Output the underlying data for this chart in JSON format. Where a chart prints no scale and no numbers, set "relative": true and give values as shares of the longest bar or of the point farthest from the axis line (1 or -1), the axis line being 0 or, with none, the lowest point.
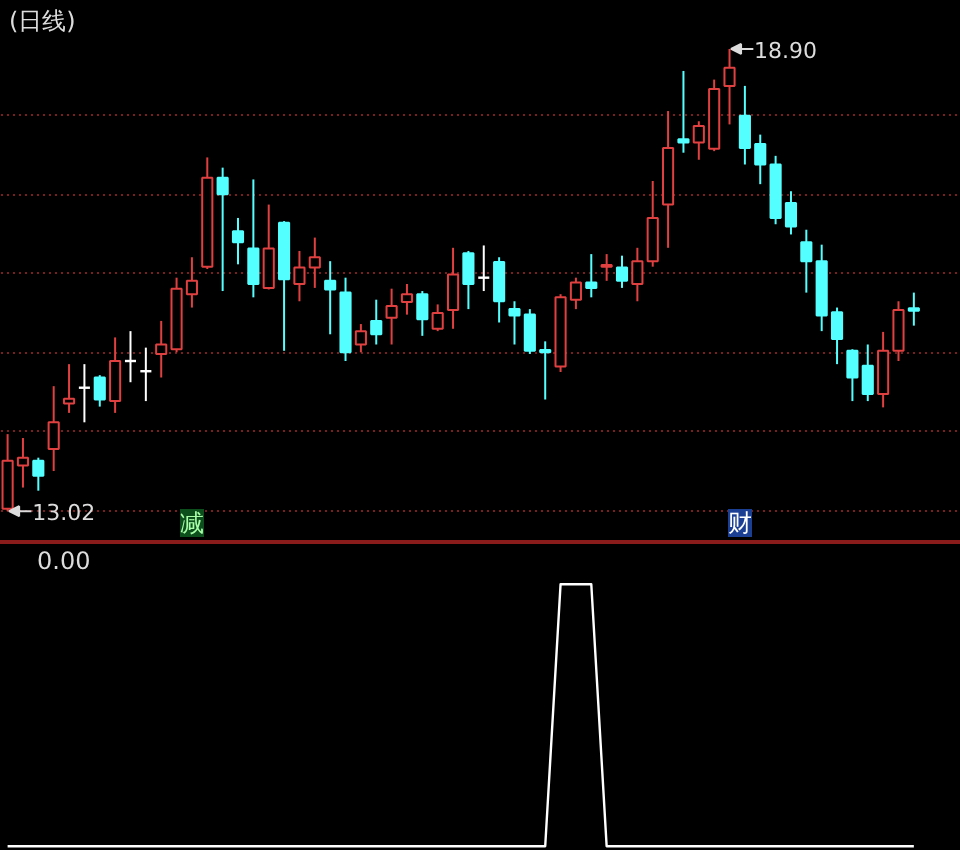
{
  "chart_data": [
    {
      "type": "candlestick",
      "title": "(日线)",
      "categories": [
        null,
        null,
        null,
        null,
        null,
        null,
        null,
        null,
        null,
        null,
        null,
        null,
        null,
        null,
        null,
        null,
        null,
        null,
        null,
        null,
        null,
        null,
        null,
        null,
        null,
        null,
        null,
        null,
        null,
        null,
        null,
        null,
        null,
        null,
        null,
        null,
        null,
        null,
        null,
        null,
        null,
        null,
        null,
        null,
        null,
        null,
        null,
        null,
        null,
        null,
        null,
        null,
        null,
        null,
        null,
        null,
        null,
        null,
        null,
        null
      ],
      "ohlc": [
        [
          13.05,
          14.0,
          13.02,
          13.66
        ],
        [
          13.6,
          13.95,
          13.32,
          13.7
        ],
        [
          13.66,
          13.7,
          13.28,
          13.47
        ],
        [
          13.81,
          14.61,
          13.53,
          14.15
        ],
        [
          14.39,
          14.89,
          14.27,
          14.45
        ],
        [
          14.59,
          14.89,
          14.15,
          14.59
        ],
        [
          14.72,
          14.75,
          14.35,
          14.44
        ],
        [
          14.42,
          15.23,
          14.27,
          14.93
        ],
        [
          14.93,
          15.31,
          14.66,
          14.93
        ],
        [
          14.8,
          15.1,
          14.42,
          14.8
        ],
        [
          15.02,
          15.44,
          14.72,
          15.14
        ],
        [
          15.08,
          15.99,
          15.04,
          15.85
        ],
        [
          15.78,
          16.25,
          15.61,
          15.95
        ],
        [
          16.13,
          17.52,
          16.1,
          17.26
        ],
        [
          17.26,
          17.39,
          15.82,
          17.05
        ],
        [
          16.58,
          16.75,
          16.16,
          16.44
        ],
        [
          16.36,
          17.24,
          15.74,
          15.91
        ],
        [
          15.86,
          16.92,
          15.84,
          16.36
        ],
        [
          16.69,
          16.71,
          15.06,
          15.97
        ],
        [
          15.91,
          16.33,
          15.69,
          16.12
        ],
        [
          16.12,
          16.5,
          15.86,
          16.25
        ],
        [
          15.95,
          16.2,
          15.27,
          15.84
        ],
        [
          15.8,
          15.99,
          14.93,
          15.04
        ],
        [
          15.14,
          15.4,
          15.04,
          15.31
        ],
        [
          15.44,
          15.71,
          15.14,
          15.27
        ],
        [
          15.48,
          15.85,
          15.14,
          15.63
        ],
        [
          15.68,
          15.91,
          15.52,
          15.78
        ],
        [
          15.78,
          15.82,
          15.25,
          15.46
        ],
        [
          15.34,
          15.65,
          15.31,
          15.54
        ],
        [
          15.58,
          16.37,
          15.34,
          16.03
        ],
        [
          16.3,
          16.33,
          15.59,
          15.91
        ],
        [
          15.99,
          16.4,
          15.82,
          15.99
        ],
        [
          16.19,
          16.25,
          15.42,
          15.69
        ],
        [
          15.59,
          15.69,
          15.14,
          15.51
        ],
        [
          15.52,
          15.59,
          15.02,
          15.06
        ],
        [
          15.07,
          15.18,
          14.44,
          15.04
        ],
        [
          14.86,
          15.78,
          14.79,
          15.74
        ],
        [
          15.71,
          15.99,
          15.59,
          15.93
        ],
        [
          15.93,
          16.29,
          15.74,
          15.86
        ],
        [
          16.13,
          16.29,
          15.95,
          16.15
        ],
        [
          16.12,
          16.27,
          15.86,
          15.95
        ],
        [
          15.91,
          16.37,
          15.69,
          16.2
        ],
        [
          16.2,
          17.22,
          16.13,
          16.75
        ],
        [
          16.92,
          18.11,
          16.37,
          17.64
        ],
        [
          17.75,
          18.62,
          17.58,
          17.71
        ],
        [
          17.71,
          17.98,
          17.49,
          17.92
        ],
        [
          17.63,
          18.51,
          17.6,
          18.39
        ],
        [
          18.43,
          18.9,
          17.94,
          18.66
        ],
        [
          18.05,
          18.43,
          17.43,
          17.64
        ],
        [
          17.69,
          17.81,
          17.18,
          17.43
        ],
        [
          17.43,
          17.54,
          16.67,
          16.75
        ],
        [
          16.94,
          17.09,
          16.54,
          16.64
        ],
        [
          16.44,
          16.6,
          15.8,
          16.2
        ],
        [
          16.2,
          16.41,
          15.31,
          15.51
        ],
        [
          15.55,
          15.61,
          14.89,
          15.21
        ],
        [
          15.06,
          15.08,
          14.42,
          14.72
        ],
        [
          14.87,
          15.14,
          14.42,
          14.51
        ],
        [
          14.51,
          15.3,
          14.34,
          15.06
        ],
        [
          15.06,
          15.69,
          14.93,
          15.58
        ],
        [
          15.6,
          15.8,
          15.38,
          15.57
        ]
      ],
      "colors": [
        "#e04040",
        "#e04040",
        "#54ffff",
        "#e04040",
        "#e04040",
        "#ffffff",
        "#54ffff",
        "#e04040",
        "#ffffff",
        "#ffffff",
        "#e04040",
        "#e04040",
        "#e04040",
        "#e04040",
        "#54ffff",
        "#54ffff",
        "#54ffff",
        "#e04040",
        "#54ffff",
        "#e04040",
        "#e04040",
        "#54ffff",
        "#54ffff",
        "#e04040",
        "#54ffff",
        "#e04040",
        "#e04040",
        "#54ffff",
        "#e04040",
        "#e04040",
        "#54ffff",
        "#ffffff",
        "#54ffff",
        "#54ffff",
        "#54ffff",
        "#54ffff",
        "#e04040",
        "#e04040",
        "#54ffff",
        "#e04040",
        "#54ffff",
        "#e04040",
        "#e04040",
        "#e04040",
        "#54ffff",
        "#e04040",
        "#e04040",
        "#e04040",
        "#54ffff",
        "#54ffff",
        "#54ffff",
        "#54ffff",
        "#54ffff",
        "#54ffff",
        "#54ffff",
        "#54ffff",
        "#54ffff",
        "#e04040",
        "#e04040",
        "#54ffff"
      ],
      "ylim": [
        12.64,
        19.51
      ],
      "yticks": [
        {
          "value": 13.02,
          "label": null
        },
        {
          "value": 14.03,
          "label": null
        },
        {
          "value": 15.04,
          "label": null
        },
        {
          "value": 16.04,
          "label": null
        },
        {
          "value": 17.05,
          "label": null
        },
        {
          "value": 18.06,
          "label": null
        }
      ],
      "grid": "y",
      "tick_labels": false,
      "annotations": [
        "18.90",
        "13.02",
        "减",
        "财"
      ]
    },
    {
      "type": "line",
      "title": "0.00",
      "relative": true,
      "color": "#ffffff",
      "categories": [
        null,
        null,
        null,
        null,
        null,
        null,
        null,
        null,
        null,
        null,
        null,
        null,
        null,
        null,
        null,
        null,
        null,
        null,
        null,
        null,
        null,
        null,
        null,
        null,
        null,
        null,
        null,
        null,
        null,
        null,
        null,
        null,
        null,
        null,
        null,
        null,
        null,
        null,
        null,
        null,
        null,
        null,
        null,
        null,
        null,
        null,
        null,
        null,
        null,
        null,
        null,
        null,
        null,
        null,
        null,
        null,
        null,
        null,
        null,
        null
      ],
      "values": [
        0,
        0,
        0,
        0,
        0,
        0,
        0,
        0,
        0,
        0,
        0,
        0,
        0,
        0,
        0,
        0,
        0,
        0,
        0,
        0,
        0,
        0,
        0,
        0,
        0,
        0,
        0,
        0,
        0,
        0,
        0,
        0,
        0,
        0,
        0,
        0,
        1,
        1,
        1,
        0,
        0,
        0,
        0,
        0,
        0,
        0,
        0,
        0,
        0,
        0,
        0,
        0,
        0,
        0,
        0,
        0,
        0,
        0,
        0,
        0
      ],
      "tick_labels": false
    }
  ]
}
